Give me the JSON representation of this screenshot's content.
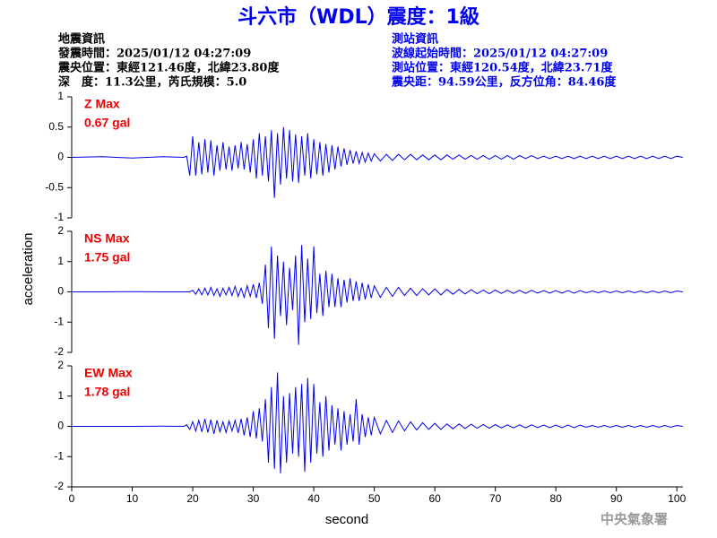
{
  "title": "斗六市（WDL）震度：1級",
  "info": {
    "left": [
      "地震資訊",
      "發震時間：2025/01/12 04:27:09",
      "震央位置：東經121.46度，北緯23.80度",
      "深　度：11.3公里，芮氏規模：5.0"
    ],
    "right": [
      "測站資訊",
      "波線起始時間：2025/01/12 04:27:09",
      "測站位置：東經120.54度，北緯23.71度",
      "震央距：94.59公里，反方位角：84.46度"
    ]
  },
  "footer": "中央氣象署",
  "chart_data": [
    {
      "type": "line",
      "label": "Z Max",
      "max_label": "0.67 gal",
      "color": "#0000ee",
      "label_color": "#ee0000",
      "xlim": [
        0,
        101
      ],
      "ylim": [
        -1,
        1
      ],
      "yticks": [
        -1,
        -0.5,
        0,
        0.5,
        1
      ],
      "x": [
        0,
        5,
        10,
        15,
        18.5,
        19,
        19.5,
        20,
        20.5,
        21,
        21.5,
        22,
        22.5,
        23,
        23.5,
        24,
        24.5,
        25,
        25.5,
        26,
        26.5,
        27,
        27.5,
        28,
        28.5,
        29,
        29.5,
        30,
        30.5,
        31,
        31.5,
        32,
        32.5,
        33,
        33.5,
        34,
        34.5,
        35,
        35.5,
        36,
        36.5,
        37,
        37.5,
        38,
        38.5,
        39,
        39.5,
        40,
        40.5,
        41,
        41.5,
        42,
        42.5,
        43,
        43.5,
        44,
        44.5,
        45,
        45.5,
        46,
        46.5,
        47,
        47.5,
        48,
        48.5,
        49,
        49.5,
        50,
        51,
        52,
        53,
        54,
        55,
        56,
        57,
        58,
        59,
        60,
        61,
        62,
        63,
        64,
        65,
        66,
        67,
        68,
        69,
        70,
        71,
        72,
        73,
        74,
        75,
        76,
        77,
        78,
        79,
        80,
        81,
        82,
        83,
        84,
        85,
        86,
        87,
        88,
        89,
        90,
        91,
        92,
        93,
        94,
        95,
        96,
        97,
        98,
        99,
        100,
        101
      ],
      "values": [
        0,
        0.01,
        -0.01,
        0.01,
        0,
        0.02,
        -0.3,
        0.35,
        -0.3,
        0.25,
        -0.28,
        0.3,
        -0.25,
        0.28,
        -0.3,
        0.2,
        -0.22,
        0.25,
        -0.2,
        0.18,
        -0.22,
        0.2,
        -0.18,
        0.25,
        -0.2,
        0.22,
        -0.25,
        0.3,
        -0.35,
        0.4,
        -0.3,
        0.35,
        -0.4,
        0.45,
        -0.67,
        0.4,
        -0.45,
        0.5,
        -0.35,
        0.45,
        -0.4,
        0.38,
        -0.42,
        0.35,
        -0.3,
        0.4,
        -0.35,
        0.3,
        -0.28,
        0.25,
        -0.3,
        0.22,
        -0.25,
        0.2,
        -0.2,
        0.18,
        -0.15,
        0.15,
        -0.12,
        0.12,
        -0.1,
        0.1,
        -0.1,
        0.08,
        -0.08,
        0.07,
        -0.06,
        0.06,
        -0.06,
        0.05,
        -0.05,
        0.05,
        -0.04,
        0.05,
        -0.04,
        0.04,
        -0.04,
        0.04,
        -0.04,
        0.04,
        -0.03,
        0.04,
        -0.03,
        0.03,
        -0.03,
        0.03,
        -0.03,
        0.03,
        -0.03,
        0.03,
        -0.03,
        0.03,
        -0.02,
        0.03,
        -0.02,
        0.02,
        -0.02,
        0.02,
        -0.02,
        0.02,
        -0.02,
        0.02,
        -0.02,
        0.02,
        -0.02,
        0.02,
        -0.02,
        0.02,
        -0.02,
        0.02,
        -0.02,
        0.02,
        -0.02,
        0.02,
        -0.02,
        0.02,
        -0.02,
        0.02,
        0
      ]
    },
    {
      "type": "line",
      "label": "NS Max",
      "max_label": "1.75 gal",
      "color": "#0000ee",
      "label_color": "#ee0000",
      "ylabel": "acceleration",
      "xlim": [
        0,
        101
      ],
      "ylim": [
        -2,
        2
      ],
      "yticks": [
        -2,
        -1,
        0,
        1,
        2
      ],
      "x": [
        0,
        5,
        10,
        15,
        18.5,
        19,
        19.5,
        20,
        20.5,
        21,
        21.5,
        22,
        22.5,
        23,
        23.5,
        24,
        24.5,
        25,
        25.5,
        26,
        26.5,
        27,
        27.5,
        28,
        28.5,
        29,
        29.5,
        30,
        30.5,
        31,
        31.5,
        32,
        32.5,
        33,
        33.5,
        34,
        34.5,
        35,
        35.5,
        36,
        36.5,
        37,
        37.5,
        38,
        38.5,
        39,
        39.5,
        40,
        40.5,
        41,
        41.5,
        42,
        42.5,
        43,
        43.5,
        44,
        44.5,
        45,
        45.5,
        46,
        46.5,
        47,
        47.5,
        48,
        48.5,
        49,
        49.5,
        50,
        51,
        52,
        53,
        54,
        55,
        56,
        57,
        58,
        59,
        60,
        61,
        62,
        63,
        64,
        65,
        66,
        67,
        68,
        69,
        70,
        71,
        72,
        73,
        74,
        75,
        76,
        77,
        78,
        79,
        80,
        81,
        82,
        83,
        84,
        85,
        86,
        87,
        88,
        89,
        90,
        91,
        92,
        93,
        94,
        95,
        96,
        97,
        98,
        99,
        100,
        101
      ],
      "values": [
        0,
        0,
        0.01,
        0,
        0,
        0,
        0,
        0.05,
        -0.08,
        0.1,
        -0.1,
        0.12,
        -0.1,
        0.15,
        -0.12,
        0.1,
        -0.15,
        0.12,
        -0.1,
        0.15,
        -0.12,
        0.18,
        -0.15,
        0.12,
        -0.18,
        0.2,
        -0.15,
        0.25,
        -0.2,
        0.3,
        -0.4,
        0.9,
        -1.2,
        1.5,
        -1.55,
        1.2,
        -0.8,
        1.0,
        -1.1,
        0.8,
        -0.6,
        1.2,
        -1.75,
        1.55,
        -1.0,
        1.1,
        -0.9,
        1.5,
        -0.7,
        0.6,
        -0.8,
        0.7,
        -0.5,
        0.6,
        -0.5,
        0.45,
        -0.5,
        0.4,
        -0.35,
        0.45,
        -0.3,
        0.35,
        -0.3,
        0.3,
        -0.25,
        0.25,
        -0.2,
        0.2,
        -0.18,
        0.15,
        -0.15,
        0.15,
        -0.12,
        0.12,
        -0.12,
        0.1,
        -0.1,
        0.1,
        -0.1,
        0.08,
        -0.08,
        0.08,
        -0.07,
        0.07,
        -0.06,
        0.06,
        -0.06,
        0.06,
        -0.05,
        0.05,
        -0.05,
        0.05,
        -0.05,
        0.05,
        -0.04,
        0.04,
        -0.04,
        0.04,
        -0.04,
        0.04,
        -0.04,
        0.04,
        -0.03,
        0.03,
        -0.03,
        0.03,
        -0.03,
        0.03,
        -0.03,
        0.03,
        -0.03,
        0.03,
        -0.03,
        0.03,
        -0.03,
        0.03,
        -0.03,
        0.03,
        0
      ]
    },
    {
      "type": "line",
      "label": "EW Max",
      "max_label": "1.78 gal",
      "color": "#0000ee",
      "label_color": "#ee0000",
      "xlabel": "second",
      "xlim": [
        0,
        101
      ],
      "xticks": [
        0,
        10,
        20,
        30,
        40,
        50,
        60,
        70,
        80,
        90,
        100
      ],
      "ylim": [
        -2,
        2
      ],
      "yticks": [
        -2,
        -1,
        0,
        1,
        2
      ],
      "x": [
        0,
        5,
        10,
        15,
        18.5,
        19,
        19.5,
        20,
        20.5,
        21,
        21.5,
        22,
        22.5,
        23,
        23.5,
        24,
        24.5,
        25,
        25.5,
        26,
        26.5,
        27,
        27.5,
        28,
        28.5,
        29,
        29.5,
        30,
        30.5,
        31,
        31.5,
        32,
        32.5,
        33,
        33.5,
        34,
        34.5,
        35,
        35.5,
        36,
        36.5,
        37,
        37.5,
        38,
        38.5,
        39,
        39.5,
        40,
        40.5,
        41,
        41.5,
        42,
        42.5,
        43,
        43.5,
        44,
        44.5,
        45,
        45.5,
        46,
        46.5,
        47,
        47.5,
        48,
        48.5,
        49,
        49.5,
        50,
        51,
        52,
        53,
        54,
        55,
        56,
        57,
        58,
        59,
        60,
        61,
        62,
        63,
        64,
        65,
        66,
        67,
        68,
        69,
        70,
        71,
        72,
        73,
        74,
        75,
        76,
        77,
        78,
        79,
        80,
        81,
        82,
        83,
        84,
        85,
        86,
        87,
        88,
        89,
        90,
        91,
        92,
        93,
        94,
        95,
        96,
        97,
        98,
        99,
        100,
        101
      ],
      "values": [
        0,
        0,
        0,
        0.01,
        0,
        0.05,
        -0.1,
        0.15,
        -0.15,
        0.2,
        -0.18,
        0.25,
        -0.2,
        0.22,
        -0.25,
        0.2,
        -0.18,
        0.15,
        -0.2,
        0.18,
        -0.15,
        0.2,
        -0.22,
        0.25,
        -0.3,
        0.3,
        -0.35,
        0.5,
        -0.4,
        0.6,
        -0.5,
        0.9,
        -1.2,
        1.3,
        -1.4,
        1.78,
        -1.55,
        1.0,
        -1.2,
        1.1,
        -0.9,
        1.3,
        -1.0,
        1.4,
        -1.5,
        1.6,
        -1.2,
        1.4,
        -0.9,
        0.8,
        -1.0,
        1.0,
        -0.8,
        0.7,
        -0.6,
        0.6,
        -0.8,
        0.5,
        -0.6,
        0.4,
        -0.5,
        0.9,
        -0.6,
        0.4,
        -0.35,
        0.3,
        -0.3,
        0.3,
        -0.25,
        0.2,
        -0.2,
        0.18,
        -0.15,
        0.15,
        -0.12,
        0.12,
        -0.1,
        0.1,
        -0.1,
        0.08,
        -0.08,
        0.08,
        -0.07,
        0.07,
        -0.06,
        0.06,
        -0.06,
        0.06,
        -0.05,
        0.05,
        -0.05,
        0.05,
        -0.05,
        0.05,
        -0.04,
        0.04,
        -0.04,
        0.04,
        -0.04,
        0.04,
        -0.04,
        0.04,
        -0.03,
        0.03,
        -0.03,
        0.03,
        -0.03,
        0.03,
        -0.03,
        0.03,
        -0.03,
        0.03,
        -0.03,
        0.03,
        -0.03,
        0.03,
        -0.03,
        0.03,
        0
      ]
    }
  ]
}
